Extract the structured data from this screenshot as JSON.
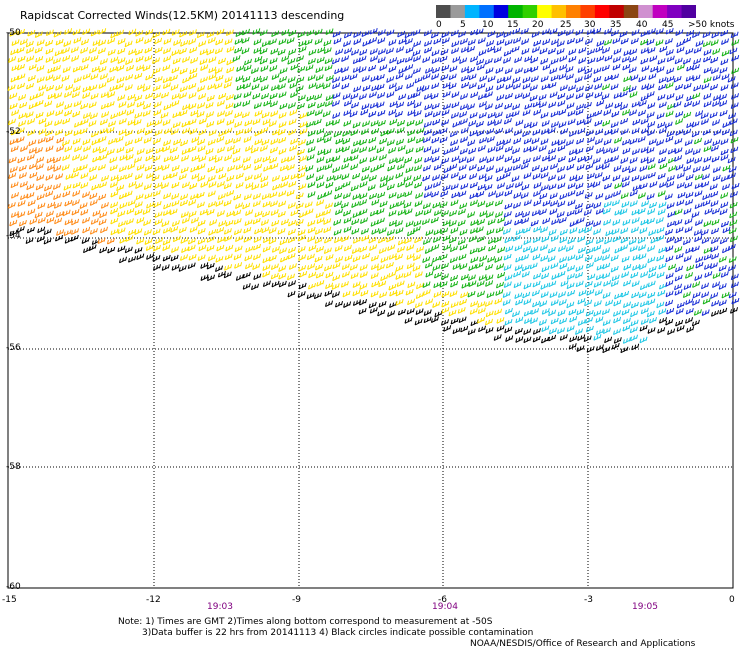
{
  "title": "Rapidscat Corrected Winds(12.5KM) 20141113 descending",
  "colorbar": {
    "unit_label": ">50 knots",
    "tick_labels": [
      "0",
      "5",
      "10",
      "15",
      "20",
      "25",
      "30",
      "35",
      "40",
      "45"
    ],
    "colors": [
      "#4d4d4d",
      "#9a9a9a",
      "#00b4ff",
      "#0070ff",
      "#0000e0",
      "#00b400",
      "#30d000",
      "#ffff00",
      "#ffc000",
      "#ff8000",
      "#ff4000",
      "#ff0000",
      "#c00000",
      "#8b4513",
      "#d090d0",
      "#c000c0",
      "#8000c0",
      "#5000a0"
    ]
  },
  "lat_labels": [
    "-50",
    "-52",
    "-54",
    "-56",
    "-58",
    "-60"
  ],
  "lon_labels": [
    "-15",
    "-12",
    "-9",
    "-6",
    "-3",
    "0"
  ],
  "time_labels": [
    "19:03",
    "19:04",
    "19:05"
  ],
  "notes": {
    "line1": "Note: 1) Times are GMT 2)Times along bottom correspond to measurement at -50S",
    "line2": "3)Data buffer is 22 hrs from 20141113 4) Black circles indicate possible contamination"
  },
  "credit": "NOAA/NESDIS/Office of Research and Applications",
  "colors": {
    "orange": "#ff8c1a",
    "yellow": "#ffe000",
    "green": "#19b419",
    "blue": "#1a2fd6",
    "cyan": "#20c8e6",
    "black": "#000000"
  }
}
